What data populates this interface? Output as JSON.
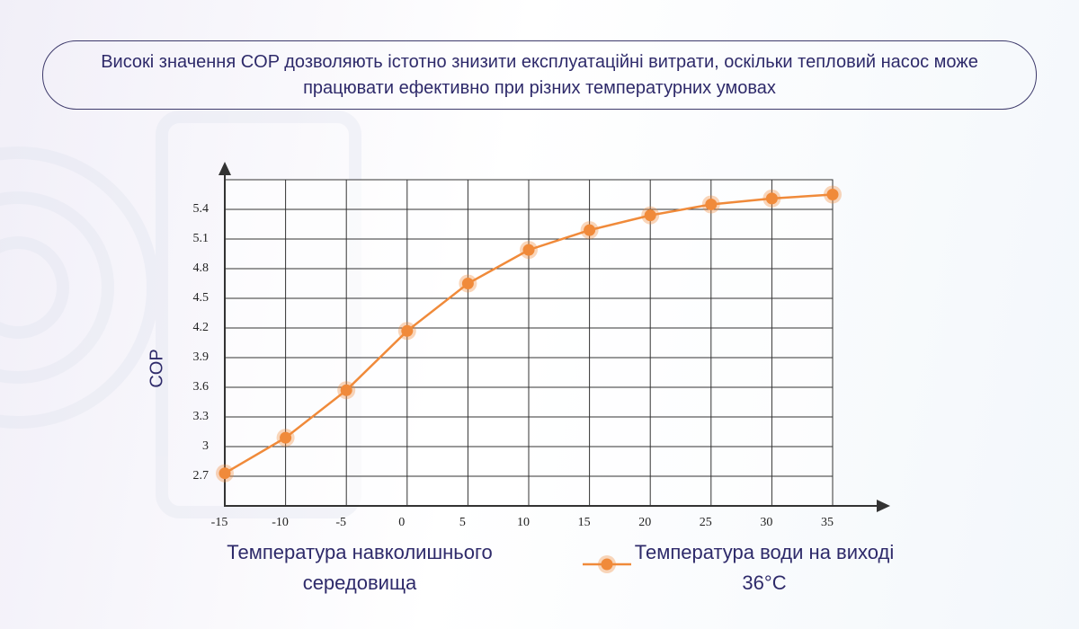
{
  "caption": "Високі значення COP дозволяють істотно знизити експлуатаційні витрати, оскільки тепловий насос може працювати ефективно при різних температурних умовах",
  "chart_data": {
    "type": "line",
    "x_label": "Температура навколишнього середовища",
    "y_label": "COP",
    "x": [
      -15,
      -10,
      -5,
      0,
      5,
      10,
      15,
      20,
      25,
      30,
      35
    ],
    "series": [
      {
        "name": "Температура води на виході 36°C",
        "color": "#f08a3a",
        "values": [
          2.73,
          3.09,
          3.57,
          4.17,
          4.65,
          4.99,
          5.19,
          5.34,
          5.45,
          5.51,
          5.55
        ]
      }
    ],
    "xlim": [
      -15,
      35
    ],
    "xticks": [
      -15,
      -10,
      -5,
      0,
      5,
      10,
      15,
      20,
      25,
      30,
      35
    ],
    "ylim": [
      2.4,
      5.7
    ],
    "yticks": [
      2.7,
      3.0,
      3.3,
      3.6,
      3.9,
      4.2,
      4.5,
      4.8,
      5.1,
      5.4
    ],
    "grid": true
  }
}
